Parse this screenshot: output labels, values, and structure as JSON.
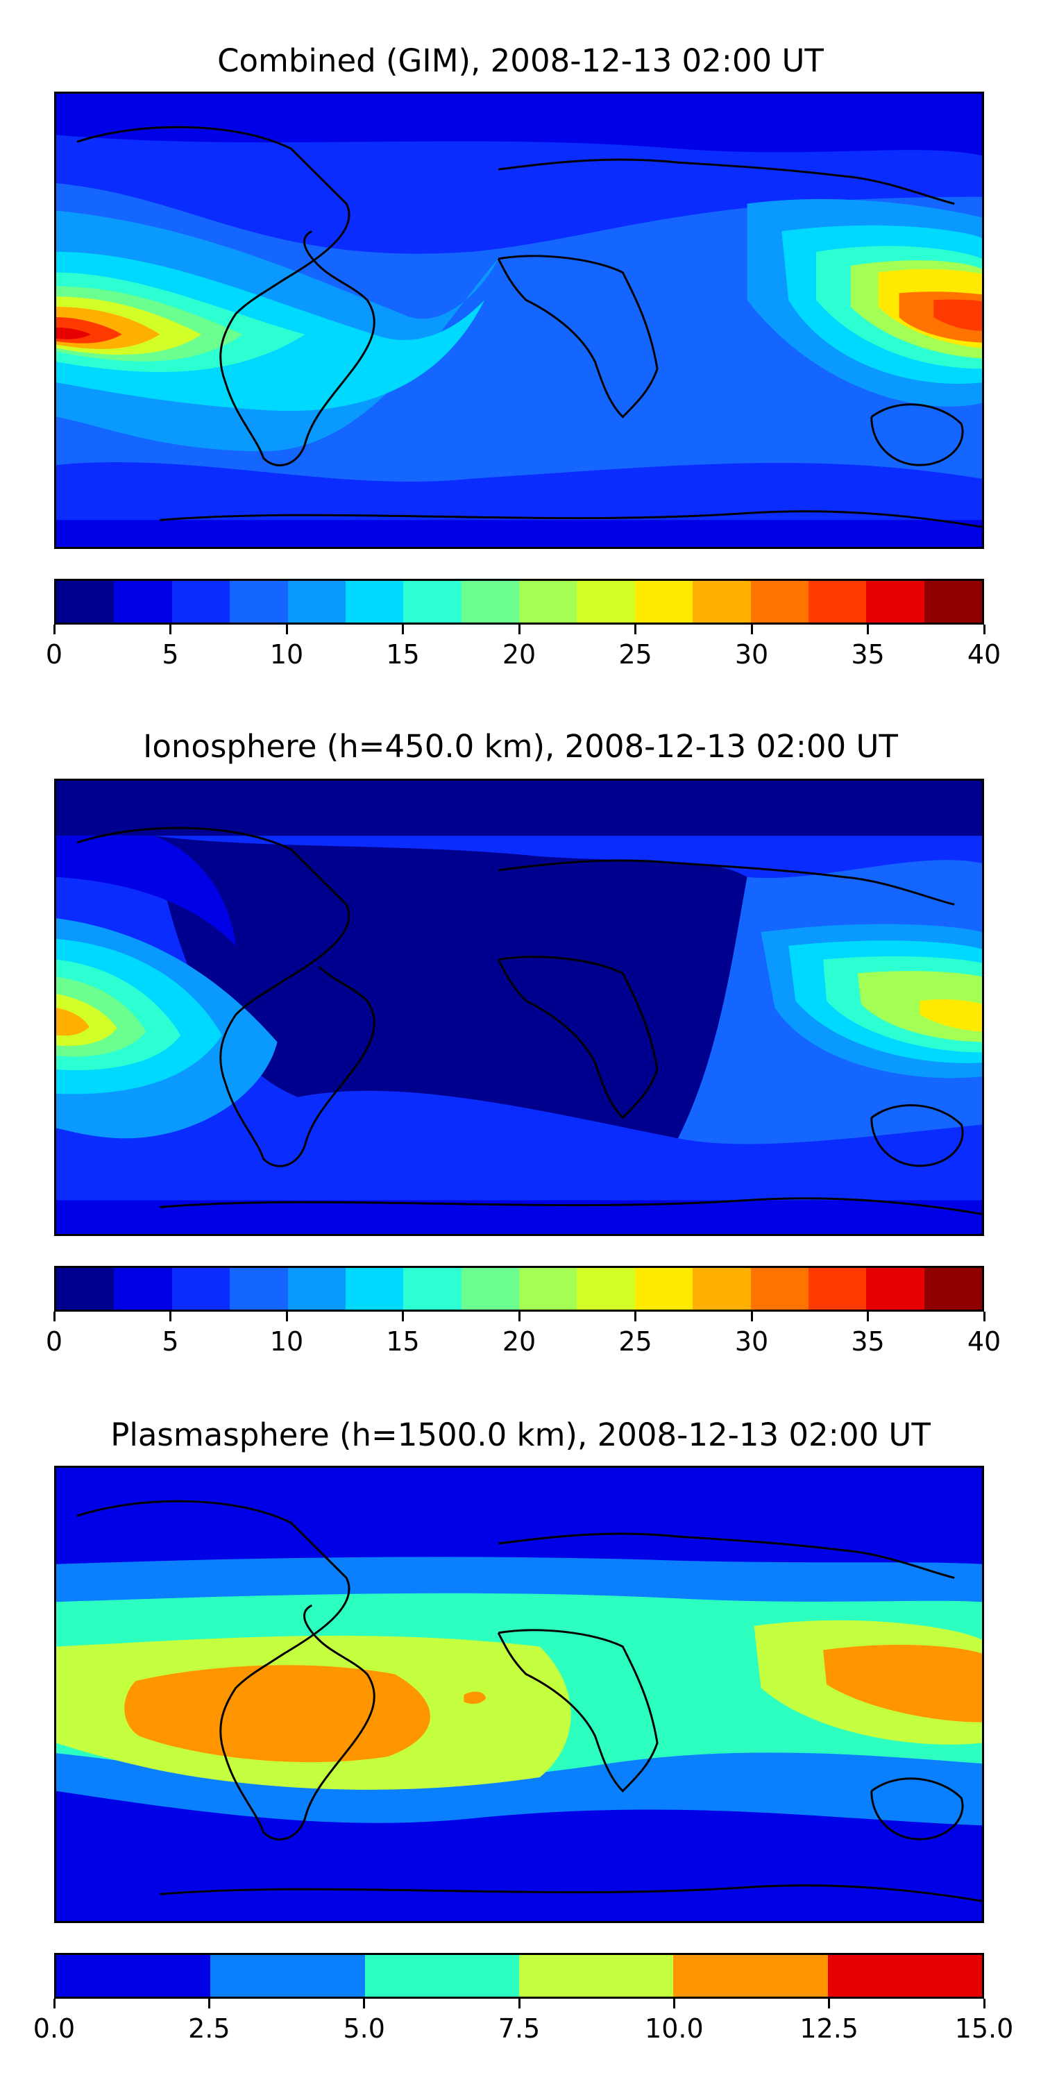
{
  "panels": [
    {
      "title": "Combined (GIM), 2008-12-13 02:00 UT",
      "colorbar": {
        "ticks": [
          "0",
          "5",
          "10",
          "15",
          "20",
          "25",
          "30",
          "35",
          "40"
        ],
        "colors": [
          "#00008f",
          "#0000e6",
          "#0a2cff",
          "#1565ff",
          "#0a9aff",
          "#00d9ff",
          "#2cffd2",
          "#6aff8e",
          "#a3ff55",
          "#d2ff28",
          "#ffea00",
          "#ffb000",
          "#ff7400",
          "#ff3a00",
          "#e60000",
          "#8f0000"
        ]
      }
    },
    {
      "title": "Ionosphere  (h=450.0 km), 2008-12-13 02:00 UT",
      "colorbar": {
        "ticks": [
          "0",
          "5",
          "10",
          "15",
          "20",
          "25",
          "30",
          "35",
          "40"
        ],
        "colors": [
          "#00008f",
          "#0000e6",
          "#0a2cff",
          "#1565ff",
          "#0a9aff",
          "#00d9ff",
          "#2cffd2",
          "#6aff8e",
          "#a3ff55",
          "#d2ff28",
          "#ffea00",
          "#ffb000",
          "#ff7400",
          "#ff3a00",
          "#e60000",
          "#8f0000"
        ]
      }
    },
    {
      "title": "Plasmasphere (h=1500.0 km), 2008-12-13 02:00 UT",
      "colorbar": {
        "ticks": [
          "0.0",
          "2.5",
          "5.0",
          "7.5",
          "10.0",
          "12.5",
          "15.0"
        ],
        "colors": [
          "#0000e6",
          "#0a80ff",
          "#2cffc0",
          "#c4ff40",
          "#ff9600",
          "#e60000"
        ]
      }
    }
  ]
}
